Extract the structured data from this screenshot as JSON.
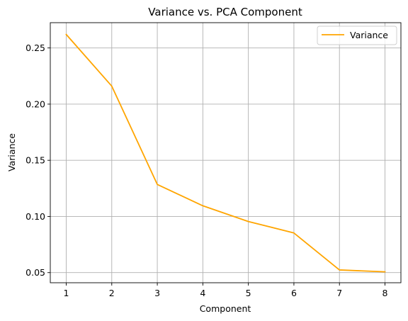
{
  "chart_data": {
    "type": "line",
    "title": "Variance vs. PCA Component",
    "xlabel": "Component",
    "ylabel": "Variance",
    "x": [
      1,
      2,
      3,
      4,
      5,
      6,
      7,
      8
    ],
    "series": [
      {
        "name": "Variance",
        "color": "#ffa500",
        "values": [
          0.262,
          0.216,
          0.1285,
          0.1095,
          0.0955,
          0.0853,
          0.0524,
          0.0507
        ]
      }
    ],
    "xlim": [
      0.65,
      8.35
    ],
    "ylim": [
      0.041,
      0.2725
    ],
    "xticks": [
      1,
      2,
      3,
      4,
      5,
      6,
      7,
      8
    ],
    "xtick_labels": [
      "1",
      "2",
      "3",
      "4",
      "5",
      "6",
      "7",
      "8"
    ],
    "yticks": [
      0.05,
      0.1,
      0.15,
      0.2,
      0.25
    ],
    "ytick_labels": [
      "0.05",
      "0.10",
      "0.15",
      "0.20",
      "0.25"
    ],
    "grid": true,
    "legend_position": "top-right"
  }
}
